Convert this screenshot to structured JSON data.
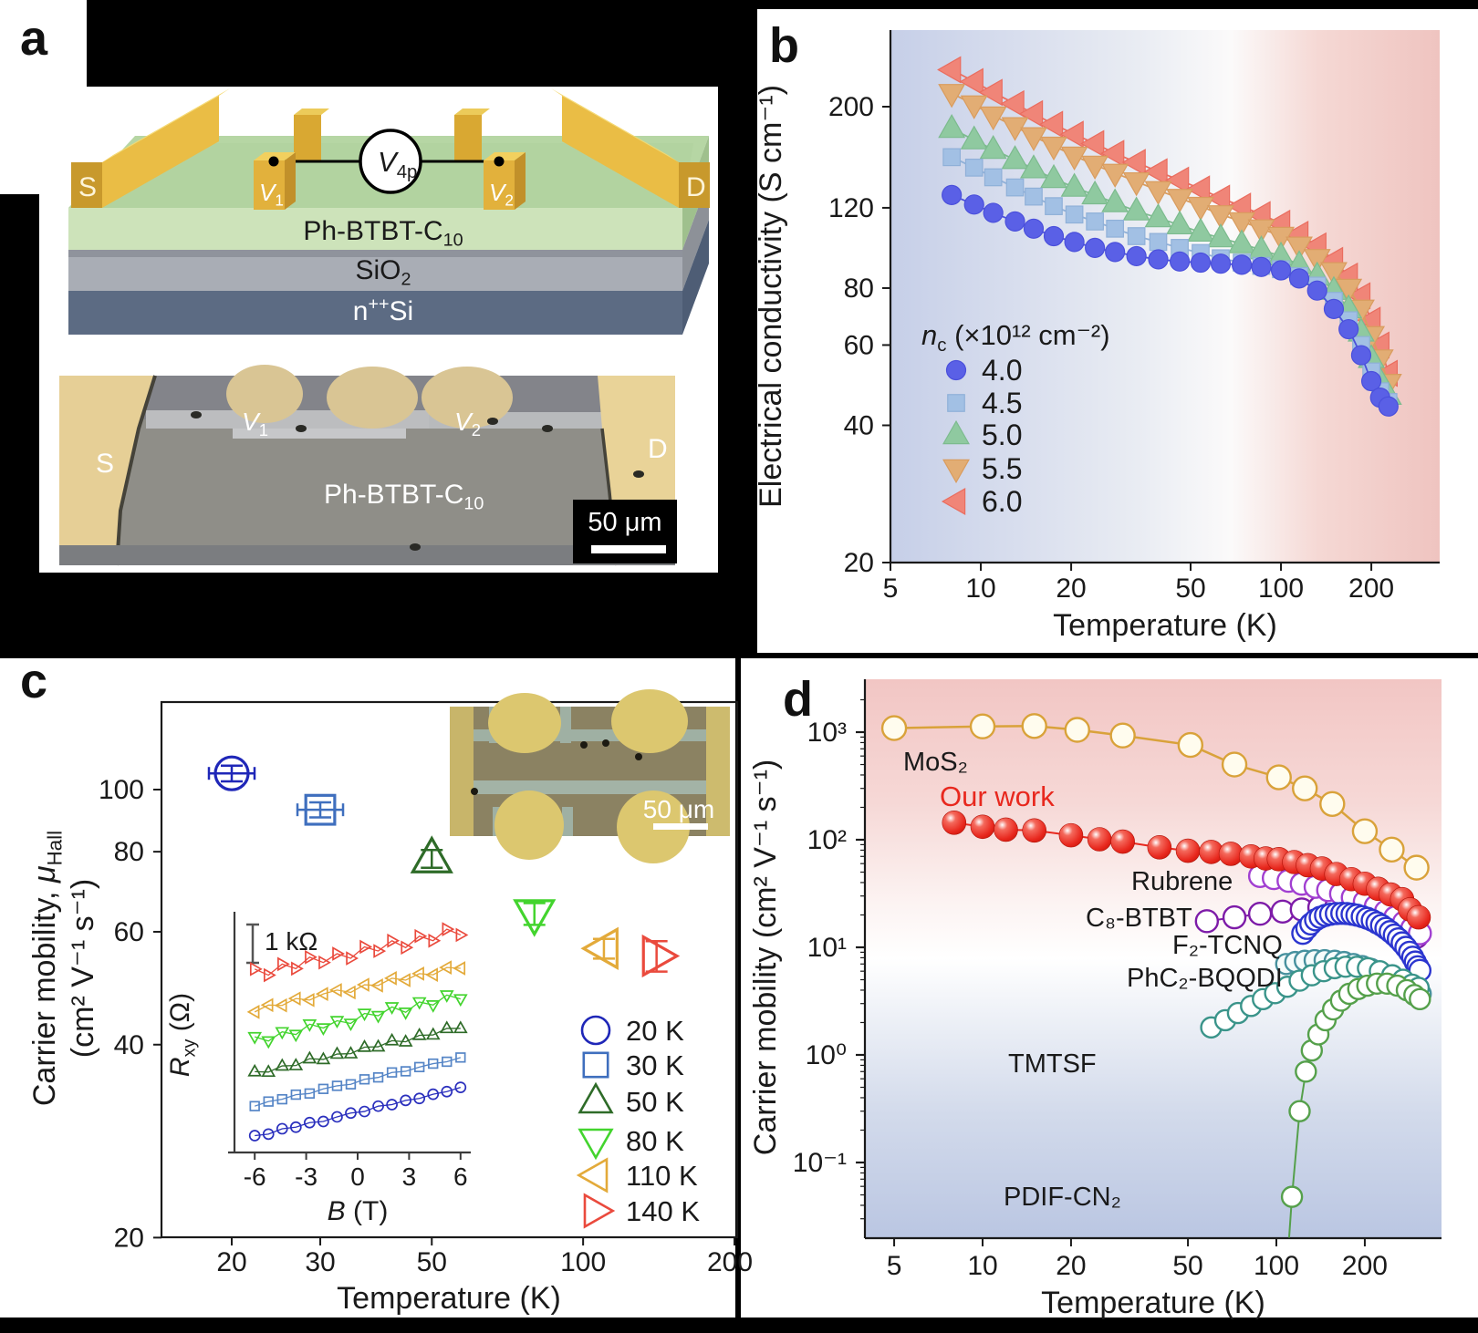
{
  "panels": {
    "a": {
      "letter": "a",
      "schematic": {
        "source_label": "S",
        "drain_label": "D",
        "v1": [
          {
            "t": "V",
            "role": "i"
          },
          {
            "t": "1",
            "role": "sub"
          }
        ],
        "v2": [
          {
            "t": "V",
            "role": "i"
          },
          {
            "t": "2",
            "role": "sub"
          }
        ],
        "v4p": [
          {
            "t": "V",
            "role": "i"
          },
          {
            "t": "4p",
            "role": "sub"
          }
        ],
        "organic_layer": [
          {
            "t": "Ph-BTBT-C"
          },
          {
            "t": "10",
            "role": "sub"
          }
        ],
        "oxide_layer": [
          {
            "t": "SiO"
          },
          {
            "t": "2",
            "role": "sub"
          }
        ],
        "substrate_layer": [
          {
            "t": "n"
          },
          {
            "t": "++",
            "role": "sup"
          },
          {
            "t": "Si"
          }
        ]
      },
      "micrograph": {
        "source_label": "S",
        "drain_label": "D",
        "v1": [
          {
            "t": "V",
            "role": "i"
          },
          {
            "t": "1",
            "role": "sub"
          }
        ],
        "v2": [
          {
            "t": "V",
            "role": "i"
          },
          {
            "t": "2",
            "role": "sub"
          }
        ],
        "film_label": [
          {
            "t": "Ph-BTBT-C"
          },
          {
            "t": "10",
            "role": "sub"
          }
        ],
        "scalebar_label": "50 μm"
      }
    },
    "b": {
      "letter": "b"
    },
    "c": {
      "letter": "c",
      "inset_micrograph_scalebar": "50 μm"
    },
    "d": {
      "letter": "d"
    }
  },
  "chart_data": [
    {
      "id": "b",
      "type": "line",
      "title": "",
      "xlabel": "Temperature (K)",
      "ylabel": "Electrical conductivity (S cm⁻¹)",
      "xscale": "log",
      "yscale": "log",
      "xlim": [
        5,
        338
      ],
      "ylim": [
        17,
        294
      ],
      "x_ticks": [
        5,
        10,
        20,
        50,
        100,
        200
      ],
      "y_ticks": [
        20,
        40,
        60,
        80,
        120,
        200
      ],
      "grid": false,
      "legend_position": "lower-left-inside",
      "legend_title": [
        {
          "t": "n",
          "role": "i"
        },
        {
          "t": "c",
          "role": "sub"
        },
        {
          "t": " (×10¹² cm⁻²)"
        }
      ],
      "x_shared": [
        8,
        9.5,
        11,
        13,
        15,
        17.5,
        20.5,
        24,
        28,
        33,
        39,
        46,
        54,
        63,
        74,
        86,
        100,
        115,
        132,
        150,
        168,
        185,
        200,
        214,
        228
      ],
      "series": [
        {
          "name": "4.0",
          "marker": "circle",
          "color": "#4a4fdb",
          "fill": "#5a60e6",
          "values": [
            128,
            122,
            117,
            112,
            108,
            104,
            101,
            98,
            96,
            94,
            92.5,
            91.5,
            91,
            90.5,
            90,
            89,
            87.5,
            84,
            79,
            72,
            65,
            57,
            50,
            46,
            44
          ]
        },
        {
          "name": "4.5",
          "marker": "square",
          "color": "#8fb0d8",
          "fill": "#a2c0e4",
          "values": [
            155,
            147,
            140,
            133,
            127,
            121,
            116,
            112,
            108,
            104,
            101,
            98,
            95.5,
            93,
            91,
            89.5,
            88,
            85,
            81,
            75,
            68,
            60,
            52.5,
            47.5,
            45
          ]
        },
        {
          "name": "5.0",
          "marker": "triangle-up",
          "color": "#7cbb8e",
          "fill": "#8fc9a0",
          "values": [
            179,
            169,
            161,
            153,
            146,
            139,
            133,
            128,
            123,
            118,
            114,
            110,
            106,
            103,
            100,
            97,
            94,
            90,
            85,
            79,
            72,
            64,
            56,
            50,
            46.5
          ]
        },
        {
          "name": "5.5",
          "marker": "triangle-down",
          "color": "#d99c5e",
          "fill": "#e2ad74",
          "values": [
            214,
            202,
            191,
            181,
            172,
            164,
            156,
            149,
            143,
            137,
            131,
            126,
            121,
            116,
            112,
            108,
            104,
            99,
            93,
            87,
            80,
            72,
            63,
            56,
            49.5
          ]
        },
        {
          "name": "6.0",
          "marker": "triangle-left",
          "color": "#ea6d5f",
          "fill": "#f08578",
          "values": [
            241,
            227,
            215,
            203,
            193,
            183,
            174,
            166,
            158,
            151,
            144,
            138,
            132,
            126,
            121,
            116,
            111,
            105,
            99,
            92,
            85,
            77,
            68,
            60,
            52
          ]
        }
      ]
    },
    {
      "id": "c-main",
      "type": "scatter",
      "xlabel": "Temperature (K)",
      "ylabel_line1": [
        {
          "t": "Carrier mobility, "
        },
        {
          "t": "μ",
          "role": "i"
        },
        {
          "t": "Hall",
          "role": "sub"
        }
      ],
      "ylabel_line2": "(cm² V⁻¹ s⁻¹)",
      "xscale": "log",
      "yscale": "log",
      "xlim": [
        15,
        210
      ],
      "ylim": [
        20,
        112
      ],
      "x_ticks": [
        20,
        30,
        50,
        100,
        200
      ],
      "y_ticks": [
        20,
        40,
        60,
        80,
        100
      ],
      "series": [
        {
          "label": "20 K",
          "marker": "circle",
          "color": "#1f27b8",
          "T": 20,
          "mu": 106,
          "err": 3
        },
        {
          "label": "30 K",
          "marker": "square",
          "color": "#3f6fbe",
          "T": 30,
          "mu": 93,
          "err": 2.5
        },
        {
          "label": "50 K",
          "marker": "triangle-up",
          "color": "#2e6b28",
          "T": 50,
          "mu": 78,
          "err": 2.5
        },
        {
          "label": "80 K",
          "marker": "triangle-down",
          "color": "#43d42e",
          "T": 80,
          "mu": 64,
          "err": 2.5
        },
        {
          "label": "110 K",
          "marker": "triangle-left",
          "color": "#e3aa3a",
          "T": 110,
          "mu": 56.5,
          "err": 2
        },
        {
          "label": "140 K",
          "marker": "triangle-right",
          "color": "#ea4a3d",
          "T": 140,
          "mu": 55,
          "err": 3
        }
      ]
    },
    {
      "id": "c-inset",
      "type": "line",
      "xlabel": [
        {
          "t": "B",
          "role": "i"
        },
        {
          "t": " (T)"
        }
      ],
      "ylabel": [
        {
          "t": "R",
          "role": "i"
        },
        {
          "t": "xy",
          "role": "sub"
        },
        {
          "t": " (Ω)"
        }
      ],
      "x_ticks": [
        -6,
        -3,
        0,
        3,
        6
      ],
      "scalebar_label": "1 kΩ",
      "scalebar_kohm": 1,
      "B_shared": [
        -6,
        -5.2,
        -4.4,
        -3.6,
        -2.8,
        -2,
        -1.2,
        -0.4,
        0.4,
        1.2,
        2,
        2.8,
        3.6,
        4.4,
        5.2,
        6
      ],
      "series": [
        {
          "label": "20 K",
          "marker": "circle",
          "color": "#2a2fbd",
          "R_kohm": [
            -0.61,
            -0.57,
            -0.43,
            -0.39,
            -0.27,
            -0.24,
            -0.12,
            -0.02,
            0.02,
            0.16,
            0.2,
            0.31,
            0.36,
            0.47,
            0.54,
            0.65
          ]
        },
        {
          "label": "30 K",
          "marker": "square",
          "color": "#5585c6",
          "R_kohm": [
            0.16,
            0.28,
            0.34,
            0.46,
            0.49,
            0.61,
            0.69,
            0.73,
            0.86,
            0.91,
            1.04,
            1.07,
            1.18,
            1.27,
            1.32,
            1.43
          ]
        },
        {
          "label": "50 K",
          "marker": "triangle-up",
          "color": "#2e6b28",
          "R_kohm": [
            1.06,
            1.05,
            1.21,
            1.22,
            1.4,
            1.38,
            1.52,
            1.53,
            1.7,
            1.71,
            1.87,
            1.84,
            2.01,
            2.02,
            2.19,
            2.19
          ]
        },
        {
          "label": "80 K",
          "marker": "triangle-down",
          "color": "#43d42e",
          "R_kohm": [
            1.97,
            1.86,
            2.1,
            2.03,
            2.3,
            2.2,
            2.39,
            2.32,
            2.58,
            2.52,
            2.75,
            2.61,
            2.88,
            2.8,
            3.06,
            2.96
          ]
        },
        {
          "label": "110 K",
          "marker": "triangle-left",
          "color": "#e3aa3a",
          "R_kohm": [
            2.62,
            2.8,
            2.79,
            2.97,
            2.93,
            3.09,
            3.19,
            3.13,
            3.33,
            3.31,
            3.5,
            3.45,
            3.62,
            3.59,
            3.78,
            3.76
          ]
        },
        {
          "label": "140 K",
          "marker": "triangle-right",
          "color": "#ea4a3d",
          "R_kohm": [
            3.74,
            3.58,
            3.87,
            3.75,
            4.05,
            3.91,
            4.14,
            4.02,
            4.32,
            4.21,
            4.48,
            4.3,
            4.6,
            4.48,
            4.78,
            4.63
          ]
        }
      ]
    },
    {
      "id": "d",
      "type": "line",
      "xlabel": "Temperature (K)",
      "ylabel": "Carrier mobility (cm² V⁻¹ s⁻¹)",
      "xscale": "log",
      "yscale": "log",
      "xlim": [
        4,
        370
      ],
      "ylim": [
        0.02,
        3100
      ],
      "x_ticks": [
        5,
        10,
        20,
        50,
        100,
        200
      ],
      "y_ticks": [
        1000,
        100,
        10,
        1,
        0.1
      ],
      "y_tick_labels": [
        "10³",
        "10²",
        "10¹",
        "10⁰",
        "10⁻¹"
      ],
      "series": [
        {
          "name": "MoS₂",
          "marker": "circle",
          "color": "#d9a23a",
          "fill": "#fffcee",
          "line": true,
          "T": [
            5,
            10,
            15,
            21,
            30,
            51,
            72,
            102,
            125,
            155,
            200,
            247,
            300
          ],
          "mu": [
            1090,
            1130,
            1140,
            1050,
            930,
            760,
            500,
            380,
            300,
            215,
            120,
            81,
            55
          ]
        },
        {
          "name": "C₈-BTBT",
          "marker": "circle",
          "color": "#7d1ba8",
          "fill": "#ffffff",
          "line": true,
          "T": [
            58,
            72,
            88,
            105,
            122,
            140,
            160,
            180,
            200,
            220,
            240,
            260,
            280,
            300
          ],
          "mu": [
            17.5,
            19,
            20.5,
            21.5,
            22.5,
            23.5,
            24,
            24,
            23,
            21.5,
            19.5,
            17.5,
            15,
            12.5
          ]
        },
        {
          "name": "Rubrene",
          "marker": "circle",
          "color": "#a13fd1",
          "fill": "#ffffff",
          "line": true,
          "T": [
            88,
            98,
            110,
            122,
            136,
            150,
            166,
            182,
            200,
            218,
            236,
            254,
            272,
            290,
            308
          ],
          "mu": [
            46,
            44,
            41.5,
            39,
            36.5,
            34,
            31.5,
            29,
            26.5,
            24,
            21.5,
            19,
            17,
            15,
            13.5
          ]
        },
        {
          "name": "F₂-TCNQ",
          "marker": "circle",
          "color": "#2b35cf",
          "fill": "#ffffff",
          "line": false,
          "T": [
            123,
            127,
            131,
            136,
            141,
            147,
            153,
            160,
            167,
            174,
            181,
            188,
            196,
            204,
            212,
            220,
            228,
            236,
            244,
            252,
            260,
            268,
            276,
            284,
            291,
            297,
            303,
            308
          ],
          "mu": [
            13.5,
            15,
            16.5,
            18,
            19,
            19.8,
            20.3,
            20.6,
            20.7,
            20.6,
            20.3,
            19.9,
            19.3,
            18.6,
            17.8,
            16.9,
            16,
            15,
            14,
            13,
            12,
            11,
            10,
            9,
            8.1,
            7.3,
            6.6,
            6.1
          ]
        },
        {
          "name": "PhC₂-BQQDI",
          "marker": "circle",
          "color": "#47919e",
          "fill": "#f6fcfb",
          "line": false,
          "T": [
            108,
            116,
            125,
            135,
            146,
            158,
            170,
            183,
            196,
            210,
            224,
            238,
            252,
            266,
            280,
            292,
            302,
            310
          ],
          "mu": [
            7.0,
            7.3,
            7.5,
            7.6,
            7.6,
            7.5,
            7.3,
            7.0,
            6.7,
            6.3,
            5.9,
            5.5,
            5.1,
            4.8,
            4.4,
            4.1,
            3.9,
            3.7
          ]
        },
        {
          "name": "TMTSF",
          "marker": "circle",
          "color": "#3a948a",
          "fill": "#ffffff",
          "line": true,
          "T": [
            60,
            67,
            74,
            82,
            90,
            99,
            109,
            120,
            132,
            145,
            158,
            172,
            188,
            205,
            225,
            248,
            270,
            290,
            305
          ],
          "mu": [
            1.8,
            2.1,
            2.45,
            2.85,
            3.3,
            3.75,
            4.3,
            4.9,
            5.5,
            6.0,
            6.4,
            6.6,
            6.6,
            6.4,
            6.0,
            5.5,
            5.0,
            4.5,
            4.2
          ]
        },
        {
          "name": "PDIF-CN₂",
          "marker": "circle",
          "color": "#55a04b",
          "fill": "#ffffff",
          "line": true,
          "line_start": [
            110.5,
            0.02
          ],
          "T": [
            113,
            120,
            126,
            132,
            139,
            147,
            156,
            166,
            177,
            190,
            204,
            220,
            238,
            258,
            278,
            295,
            308
          ],
          "mu": [
            0.048,
            0.3,
            0.7,
            1.1,
            1.55,
            2.1,
            2.65,
            3.2,
            3.7,
            4.1,
            4.4,
            4.6,
            4.6,
            4.4,
            4.0,
            3.6,
            3.3
          ]
        },
        {
          "name": "Our work",
          "marker": "sphere",
          "color": "#e8281e",
          "fill": "#e8281e",
          "line": true,
          "T": [
            8,
            10,
            12,
            15,
            20,
            25,
            30,
            40,
            50,
            60,
            70,
            82,
            92,
            102,
            115,
            128,
            143,
            160,
            180,
            200,
            222,
            245,
            268,
            285,
            305
          ],
          "mu": [
            144,
            132,
            124,
            122,
            110,
            101,
            96,
            85,
            79,
            77,
            74,
            70,
            67,
            66,
            62,
            58,
            54,
            48,
            43,
            39,
            35,
            31,
            28,
            22.5,
            19
          ]
        }
      ],
      "annotations": [
        {
          "text": "MoS₂",
          "color": "#1a1a1a"
        },
        {
          "text": "Our work",
          "color": "#e8281e"
        },
        {
          "text": "Rubrene",
          "color": "#1a1a1a"
        },
        {
          "text": "C₈-BTBT",
          "color": "#1a1a1a"
        },
        {
          "text": "F₂-TCNQ",
          "color": "#1a1a1a"
        },
        {
          "text": "PhC₂-BQQDI",
          "color": "#1a1a1a"
        },
        {
          "text": "TMTSF",
          "color": "#1a1a1a"
        },
        {
          "text": "PDIF-CN₂",
          "color": "#1a1a1a"
        }
      ]
    }
  ]
}
